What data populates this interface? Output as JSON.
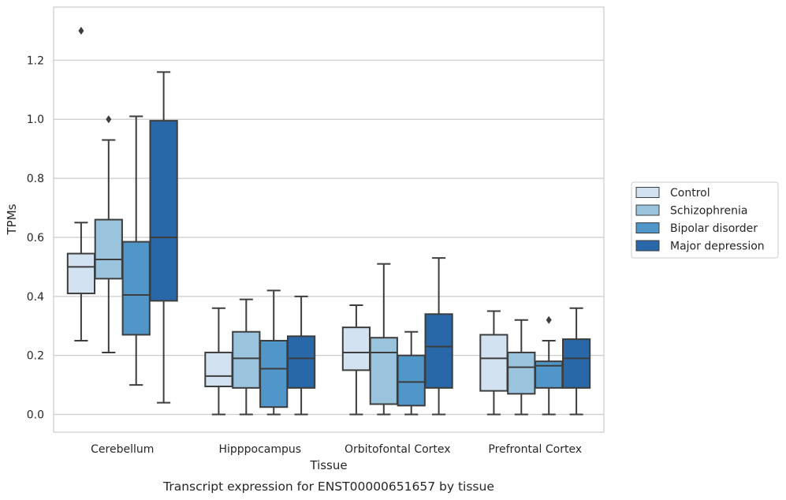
{
  "chart_data": {
    "type": "box",
    "caption": "Transcript expression for ENST00000651657 by tissue",
    "xlabel": "Tissue",
    "ylabel": "TPMs",
    "ylim": [
      -0.06,
      1.38
    ],
    "yticks": [
      "0.0",
      "0.2",
      "0.4",
      "0.6",
      "0.8",
      "1.0",
      "1.2"
    ],
    "ytick_values": [
      0.0,
      0.2,
      0.4,
      0.6,
      0.8,
      1.0,
      1.2
    ],
    "grid": "horizontal",
    "legend_position": "right",
    "categories": [
      "Cerebellum",
      "Hipppocampus",
      "Orbitofontal Cortex",
      "Prefrontal Cortex"
    ],
    "series": [
      {
        "name": "Control",
        "color": "#d2e2f0",
        "boxes": [
          {
            "whislo": 0.25,
            "q1": 0.41,
            "med": 0.5,
            "q3": 0.545,
            "whishi": 0.65,
            "fliers": [
              1.3
            ]
          },
          {
            "whislo": 0.0,
            "q1": 0.095,
            "med": 0.13,
            "q3": 0.21,
            "whishi": 0.36,
            "fliers": []
          },
          {
            "whislo": 0.0,
            "q1": 0.15,
            "med": 0.21,
            "q3": 0.295,
            "whishi": 0.37,
            "fliers": []
          },
          {
            "whislo": 0.0,
            "q1": 0.08,
            "med": 0.19,
            "q3": 0.27,
            "whishi": 0.35,
            "fliers": []
          }
        ]
      },
      {
        "name": "Schizophrenia",
        "color": "#9ac4de",
        "boxes": [
          {
            "whislo": 0.21,
            "q1": 0.46,
            "med": 0.525,
            "q3": 0.66,
            "whishi": 0.93,
            "fliers": [
              1.0
            ]
          },
          {
            "whislo": 0.0,
            "q1": 0.09,
            "med": 0.19,
            "q3": 0.28,
            "whishi": 0.39,
            "fliers": []
          },
          {
            "whislo": 0.0,
            "q1": 0.035,
            "med": 0.21,
            "q3": 0.26,
            "whishi": 0.51,
            "fliers": []
          },
          {
            "whislo": 0.0,
            "q1": 0.07,
            "med": 0.16,
            "q3": 0.21,
            "whishi": 0.32,
            "fliers": []
          }
        ]
      },
      {
        "name": "Bipolar disorder",
        "color": "#5096c8",
        "boxes": [
          {
            "whislo": 0.1,
            "q1": 0.27,
            "med": 0.405,
            "q3": 0.585,
            "whishi": 1.01,
            "fliers": []
          },
          {
            "whislo": 0.0,
            "q1": 0.025,
            "med": 0.155,
            "q3": 0.25,
            "whishi": 0.42,
            "fliers": []
          },
          {
            "whislo": 0.0,
            "q1": 0.03,
            "med": 0.11,
            "q3": 0.2,
            "whishi": 0.28,
            "fliers": []
          },
          {
            "whislo": 0.0,
            "q1": 0.09,
            "med": 0.165,
            "q3": 0.18,
            "whishi": 0.25,
            "fliers": [
              0.32
            ]
          }
        ]
      },
      {
        "name": "Major depression",
        "color": "#2868a8",
        "boxes": [
          {
            "whislo": 0.04,
            "q1": 0.385,
            "med": 0.6,
            "q3": 0.995,
            "whishi": 1.16,
            "fliers": []
          },
          {
            "whislo": 0.0,
            "q1": 0.09,
            "med": 0.19,
            "q3": 0.265,
            "whishi": 0.4,
            "fliers": []
          },
          {
            "whislo": 0.0,
            "q1": 0.09,
            "med": 0.23,
            "q3": 0.34,
            "whishi": 0.53,
            "fliers": []
          },
          {
            "whislo": 0.0,
            "q1": 0.09,
            "med": 0.19,
            "q3": 0.255,
            "whishi": 0.36,
            "fliers": []
          }
        ]
      }
    ]
  }
}
